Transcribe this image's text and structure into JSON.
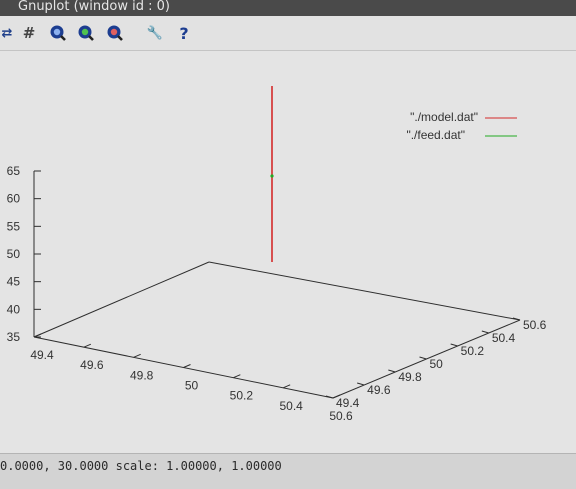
{
  "window": {
    "title": "Gnuplot (window id : 0)"
  },
  "toolbar": {
    "buttons": [
      {
        "name": "copy-icon",
        "glyph": "⇄"
      },
      {
        "name": "grid-icon",
        "glyph": "#"
      },
      {
        "name": "zoom-previous-icon"
      },
      {
        "name": "zoom-next-icon"
      },
      {
        "name": "zoom-out-icon"
      },
      {
        "name": "options-icon",
        "glyph": "🔧"
      },
      {
        "name": "help-icon",
        "glyph": "?"
      }
    ]
  },
  "chart_data": {
    "type": "line",
    "plot3d": true,
    "series": [
      {
        "name": "\"./model.dat\"",
        "color": "#d42a2a",
        "points": [
          [
            50.0,
            50.0,
            35
          ],
          [
            50.0,
            50.0,
            65
          ]
        ]
      },
      {
        "name": "\"./feed.dat\"",
        "color": "#22aa22",
        "points": [
          [
            50.0,
            50.0,
            50
          ]
        ]
      }
    ],
    "x_ticks": [
      "49.4",
      "49.6",
      "49.8",
      "50",
      "50.2",
      "50.4",
      "50.6"
    ],
    "y_ticks": [
      "49.4",
      "49.6",
      "49.8",
      "50",
      "50.2",
      "50.4",
      "50.6"
    ],
    "z_ticks": [
      "35",
      "40",
      "45",
      "50",
      "55",
      "60",
      "65"
    ],
    "xlim": [
      49.4,
      50.6
    ],
    "ylim": [
      49.4,
      50.6
    ],
    "zlim": [
      35,
      65
    ],
    "legend_position": "top-right"
  },
  "status": {
    "text": "0.0000, 30.0000  scale: 1.00000, 1.00000"
  }
}
